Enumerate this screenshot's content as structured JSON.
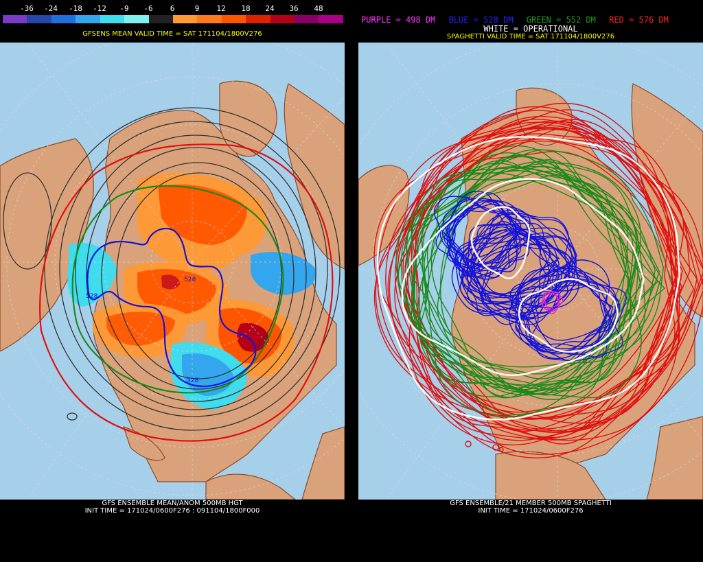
{
  "left": {
    "colorbar": {
      "labels": [
        "-36",
        "-24",
        "-18",
        "-12",
        "-9",
        "-6",
        "6",
        "9",
        "12",
        "18",
        "24",
        "36",
        "48"
      ],
      "colors": [
        "#7a3cc6",
        "#2747a8",
        "#1f6fe0",
        "#33a6ee",
        "#3fdcee",
        "#7ff0ee",
        "#222222",
        "#ff9933",
        "#ff7a1a",
        "#ff5500",
        "#dd2200",
        "#b40018",
        "#880066",
        "#aa0088"
      ]
    },
    "valid_time": "GFSENS MEAN VALID TIME = SAT 171104/1800V276",
    "contour_labels": [
      "528",
      "528",
      "528"
    ],
    "footer_line1": "GFS ENSEMBLE MEAN/ANOM 500MB HGT",
    "footer_line2": "INIT TIME = 171024/0600F276 : 091104/1800F000"
  },
  "right": {
    "legend": [
      {
        "text": "PURPLE = 498 DM",
        "color": "#ff33ff"
      },
      {
        "text": "BLUE = 528 DM",
        "color": "#2222ff"
      },
      {
        "text": "GREEN = 552 DM",
        "color": "#229922"
      },
      {
        "text": "RED = 576 DM",
        "color": "#ff2222"
      }
    ],
    "operational": "WHITE = OPERATIONAL",
    "valid_time": "SPAGHETTI VALID TIME = SAT 171104/1800V276",
    "footer_line1": "GFS ENSEMBLE/21 MEMBER 500MB SPAGHETTI",
    "footer_line2": "INIT TIME = 171024/0600F276"
  },
  "colors": {
    "ocean": "#a6cfea",
    "land": "#d9a27a",
    "coast": "#8b4a2a"
  }
}
